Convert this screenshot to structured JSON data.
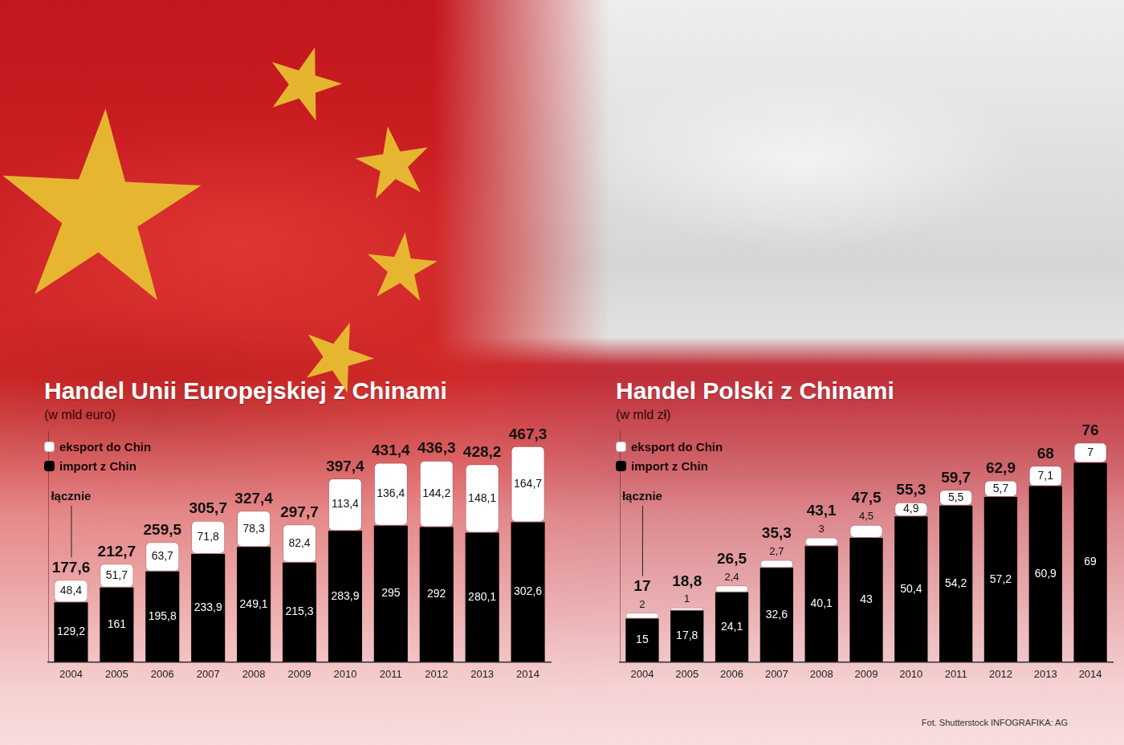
{
  "chart_data": [
    {
      "type": "bar",
      "title": "Handel Unii Europejskiej z Chinami",
      "subtitle": "(w mld euro)",
      "annotation": "łącznie",
      "categories": [
        "2004",
        "2005",
        "2006",
        "2007",
        "2008",
        "2009",
        "2010",
        "2011",
        "2012",
        "2013",
        "2014"
      ],
      "series": [
        {
          "name": "eksport do Chin",
          "color": "#ffffff",
          "values": [
            48.4,
            51.7,
            63.7,
            71.8,
            78.3,
            82.4,
            113.4,
            136.4,
            144.2,
            148.1,
            164.7
          ],
          "value_labels": [
            "48,4",
            "51,7",
            "63,7",
            "71,8",
            "78,3",
            "82,4",
            "113,4",
            "136,4",
            "144,2",
            "148,1",
            "164,7"
          ]
        },
        {
          "name": "import z Chin",
          "color": "#000000",
          "values": [
            129.2,
            161,
            195.8,
            233.9,
            249.1,
            215.3,
            283.9,
            295,
            292,
            280.1,
            302.6
          ],
          "value_labels": [
            "129,2",
            "161",
            "195,8",
            "233,9",
            "249,1",
            "215,3",
            "283,9",
            "295",
            "292",
            "280,1",
            "302,6"
          ]
        }
      ],
      "totals": {
        "values": [
          177.6,
          212.7,
          259.5,
          305.7,
          327.4,
          297.7,
          397.4,
          431.4,
          436.3,
          428.2,
          467.3
        ],
        "value_labels": [
          "177,6",
          "212,7",
          "259,5",
          "305,7",
          "327,4",
          "297,7",
          "397,4",
          "431,4",
          "436,3",
          "428,2",
          "467,3"
        ]
      },
      "ylim": [
        0,
        500
      ],
      "stacked": true,
      "data_labels": true,
      "legend": "top-left",
      "tick_labels": "x",
      "grid": false
    },
    {
      "type": "bar",
      "title": "Handel Polski z Chinami",
      "subtitle": "(w mld zł)",
      "annotation": "łącznie",
      "categories": [
        "2004",
        "2005",
        "2006",
        "2007",
        "2008",
        "2009",
        "2010",
        "2011",
        "2012",
        "2013",
        "2014"
      ],
      "series": [
        {
          "name": "eksport do Chin",
          "color": "#ffffff",
          "values": [
            2,
            1,
            2.4,
            2.7,
            3,
            4.5,
            4.9,
            5.5,
            5.7,
            7.1,
            7
          ],
          "value_labels": [
            "2",
            "1",
            "2,4",
            "2,7",
            "3",
            "4,5",
            "4,9",
            "5,5",
            "5,7",
            "7,1",
            "7"
          ]
        },
        {
          "name": "import z Chin",
          "color": "#000000",
          "values": [
            15,
            17.8,
            24.1,
            32.6,
            40.1,
            43,
            50.4,
            54.2,
            57.2,
            60.9,
            69
          ],
          "value_labels": [
            "15",
            "17,8",
            "24,1",
            "32,6",
            "40,1",
            "43",
            "50,4",
            "54,2",
            "57,2",
            "60,9",
            "69"
          ]
        }
      ],
      "totals": {
        "values": [
          17,
          18.8,
          26.5,
          35.3,
          43.1,
          47.5,
          55.3,
          59.7,
          62.9,
          68,
          76
        ],
        "value_labels": [
          "17",
          "18,8",
          "26,5",
          "35,3",
          "43,1",
          "47,5",
          "55,3",
          "59,7",
          "62,9",
          "68",
          "76"
        ]
      },
      "ylim": [
        0,
        80
      ],
      "stacked": true,
      "data_labels": true,
      "legend": "top-left",
      "tick_labels": "x",
      "grid": false
    }
  ],
  "credit": "Fot. Shutterstock  INFOGRAFIKA: AG"
}
